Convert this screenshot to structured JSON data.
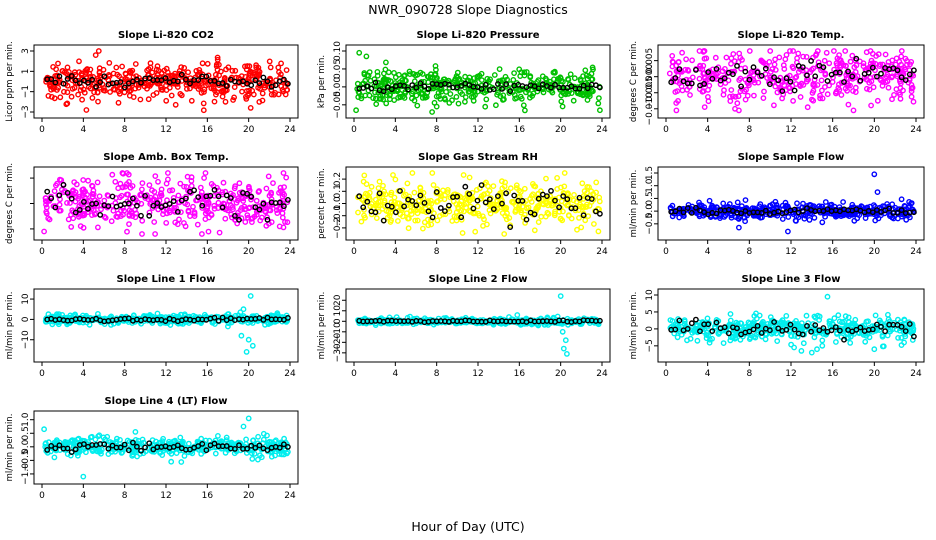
{
  "figure": {
    "title": "NWR_090728  Slope Diagnostics",
    "xlabel": "Hour of Day (UTC)"
  },
  "chart_data": [
    {
      "type": "scatter",
      "title": "Slope Li-820 CO2",
      "ylabel": "Licor ppm per min.",
      "color": "#ff0000",
      "xticks": [
        0,
        4,
        8,
        12,
        16,
        20,
        24
      ],
      "xlim": [
        0,
        24
      ],
      "yticks": [
        3,
        1,
        -1,
        -3
      ],
      "ytick_labels": [
        "3",
        "1",
        "−1",
        "−3"
      ],
      "ylim": [
        -3,
        3
      ],
      "spread": 0.9,
      "black_spread": 0.3,
      "series": [
        {
          "x": [
            5.2,
            5.5,
            4.3,
            7.4,
            8.5,
            10.5,
            14.5,
            20.2
          ],
          "y": [
            2.6,
            3.0,
            -2.8,
            -2.1,
            -1.4,
            1.8,
            -1.9,
            -2.6
          ]
        }
      ]
    },
    {
      "type": "scatter",
      "title": "Slope Li-820 Pressure",
      "ylabel": "kPa per min.",
      "color": "#00c000",
      "xticks": [
        0,
        4,
        8,
        12,
        16,
        20,
        24
      ],
      "xlim": [
        0,
        24
      ],
      "yticks": [
        0.1,
        0.05,
        0.0,
        -0.05
      ],
      "ytick_labels": [
        "0.10",
        "0.05",
        "0.00",
        "−0.05"
      ],
      "ylim": [
        -0.07,
        0.1
      ],
      "spread": 0.025,
      "black_spread": 0.006,
      "series": [
        {
          "x": [
            0.5,
            0.2,
            8.0,
            23.8,
            1.2
          ],
          "y": [
            0.095,
            -0.065,
            -0.055,
            -0.065,
            0.085
          ]
        }
      ]
    },
    {
      "type": "scatter",
      "title": "Slope Li-820 Temp.",
      "ylabel": "degrees C per min.",
      "color": "#ff00ff",
      "xticks": [
        0,
        4,
        8,
        12,
        16,
        20,
        24
      ],
      "xlim": [
        0,
        24
      ],
      "yticks": [
        0.005,
        0.0,
        -0.005,
        -0.01
      ],
      "ytick_labels": [
        "0.005",
        "0.000",
        "−0.005",
        "−0.010"
      ],
      "ylim": [
        -0.011,
        0.008
      ],
      "spread": 0.004,
      "black_spread": 0.002,
      "series": [
        {
          "x": [
            3.7,
            1.0,
            7.0,
            10.0,
            18.0
          ],
          "y": [
            0.0085,
            -0.0105,
            -0.0105,
            0.0085,
            -0.0105
          ]
        }
      ]
    },
    {
      "type": "scatter",
      "title": "Slope Amb. Box Temp.",
      "ylabel": "degrees C per min.",
      "color": "#ff00ff",
      "xticks": [
        0,
        4,
        8,
        12,
        16,
        20,
        24
      ],
      "xlim": [
        0,
        24
      ],
      "yticks": [
        0.1,
        0.0,
        -0.1
      ],
      "ytick_labels": [
        "",
        "",
        ""
      ],
      "ylim": [
        -0.12,
        0.12
      ],
      "spread": 0.05,
      "black_spread": 0.03,
      "series": [
        {
          "x": [
            0.2,
            23.0
          ],
          "y": [
            -0.11,
            -0.09
          ]
        }
      ]
    },
    {
      "type": "scatter",
      "title": "Slope Gas Stream RH",
      "ylabel": "percent per min.",
      "color": "#ffff00",
      "xticks": [
        0,
        4,
        8,
        12,
        16,
        20,
        24
      ],
      "xlim": [
        0,
        24
      ],
      "yticks": [
        0.2,
        0.1,
        0.0,
        -0.1,
        -0.2
      ],
      "ytick_labels": [
        "0.2",
        "0.1",
        "0.0",
        "−0.1",
        "−0.2"
      ],
      "ylim": [
        -0.25,
        0.25
      ],
      "spread": 0.09,
      "black_spread": 0.07,
      "series": [
        {
          "x": [
            1.0,
            17.5
          ],
          "y": [
            0.23,
            -0.22
          ]
        }
      ]
    },
    {
      "type": "scatter",
      "title": "Slope Sample Flow",
      "ylabel": "ml/min per min.",
      "color": "#0000ff",
      "xticks": [
        0,
        4,
        8,
        12,
        16,
        20,
        24
      ],
      "xlim": [
        0,
        24
      ],
      "yticks": [
        1.5,
        1.0,
        0.5,
        0.0,
        -0.5
      ],
      "ytick_labels": [
        "1.5",
        "1.0",
        "0.5",
        "0.0",
        "−0.5"
      ],
      "ylim": [
        -0.9,
        1.5
      ],
      "spread": 0.16,
      "black_spread": 0.06,
      "series": [
        {
          "x": [
            20.0,
            11.7,
            20.3,
            7.0
          ],
          "y": [
            1.45,
            -0.8,
            0.75,
            -0.65
          ]
        }
      ]
    },
    {
      "type": "scatter",
      "title": "Slope Line 1 Flow",
      "ylabel": "ml/min per min.",
      "color": "#00eeee",
      "xticks": [
        0,
        4,
        8,
        12,
        16,
        20,
        24
      ],
      "xlim": [
        0,
        24
      ],
      "yticks": [
        10,
        0,
        -10
      ],
      "ytick_labels": [
        "10",
        "0",
        "−10"
      ],
      "ylim": [
        -18,
        12
      ],
      "spread": 1.2,
      "black_spread": 0.5,
      "series": [
        {
          "x": [
            19.0,
            19.2,
            19.5,
            20.2,
            20.0,
            19.8,
            19.3,
            20.4
          ],
          "y": [
            2.0,
            3.5,
            5.0,
            11.5,
            -10.0,
            -16.0,
            -8.0,
            -13.0
          ]
        }
      ]
    },
    {
      "type": "scatter",
      "title": "Slope Line 2 Flow",
      "ylabel": "ml/min per min.",
      "color": "#00eeee",
      "xticks": [
        0,
        4,
        8,
        12,
        16,
        20,
        24
      ],
      "xlim": [
        0,
        24
      ],
      "yticks": [
        20,
        10,
        0,
        -10,
        -20,
        -30
      ],
      "ytick_labels": [
        "20",
        "10",
        "0",
        "−10",
        "−20",
        "−30"
      ],
      "ylim": [
        -33,
        25
      ],
      "spread": 1.5,
      "black_spread": 0.5,
      "series": [
        {
          "x": [
            20.0,
            20.2,
            20.5,
            20.3,
            20.6,
            15.8
          ],
          "y": [
            24.0,
            -10.0,
            -18.0,
            -26.0,
            -31.0,
            6.0
          ]
        }
      ]
    },
    {
      "type": "scatter",
      "title": "Slope Line 3 Flow",
      "ylabel": "ml/min per min.",
      "color": "#00eeee",
      "xticks": [
        0,
        4,
        8,
        12,
        16,
        20,
        24
      ],
      "xlim": [
        0,
        24
      ],
      "yticks": [
        10,
        5,
        0,
        -5
      ],
      "ytick_labels": [
        "10",
        "5",
        "0",
        "−5"
      ],
      "ylim": [
        -8,
        10
      ],
      "spread": 1.8,
      "black_spread": 1.2,
      "series": [
        {
          "x": [
            15.5,
            12.3,
            13.0,
            14.0,
            14.5,
            15.0,
            20.0,
            12.0
          ],
          "y": [
            9.5,
            -5.5,
            -6.5,
            -7.0,
            -6.0,
            -5.0,
            -6.0,
            -2.0
          ]
        }
      ]
    },
    {
      "type": "scatter",
      "title": "Slope Line 4 (LT) Flow",
      "ylabel": "ml/min per min.",
      "color": "#00eeee",
      "xticks": [
        0,
        4,
        8,
        12,
        16,
        20,
        24
      ],
      "xlim": [
        0,
        24
      ],
      "yticks": [
        1.0,
        0.5,
        0.0,
        -0.5,
        -1.0
      ],
      "ytick_labels": [
        "1.0",
        "0.5",
        "0.0",
        "−0.5",
        "−1.0"
      ],
      "ylim": [
        -1.15,
        1.1
      ],
      "spread": 0.18,
      "black_spread": 0.08,
      "series": [
        {
          "x": [
            4.0,
            20.0,
            0.2,
            19.5,
            12.5
          ],
          "y": [
            -1.1,
            1.05,
            0.65,
            0.75,
            -0.55
          ]
        }
      ]
    }
  ]
}
